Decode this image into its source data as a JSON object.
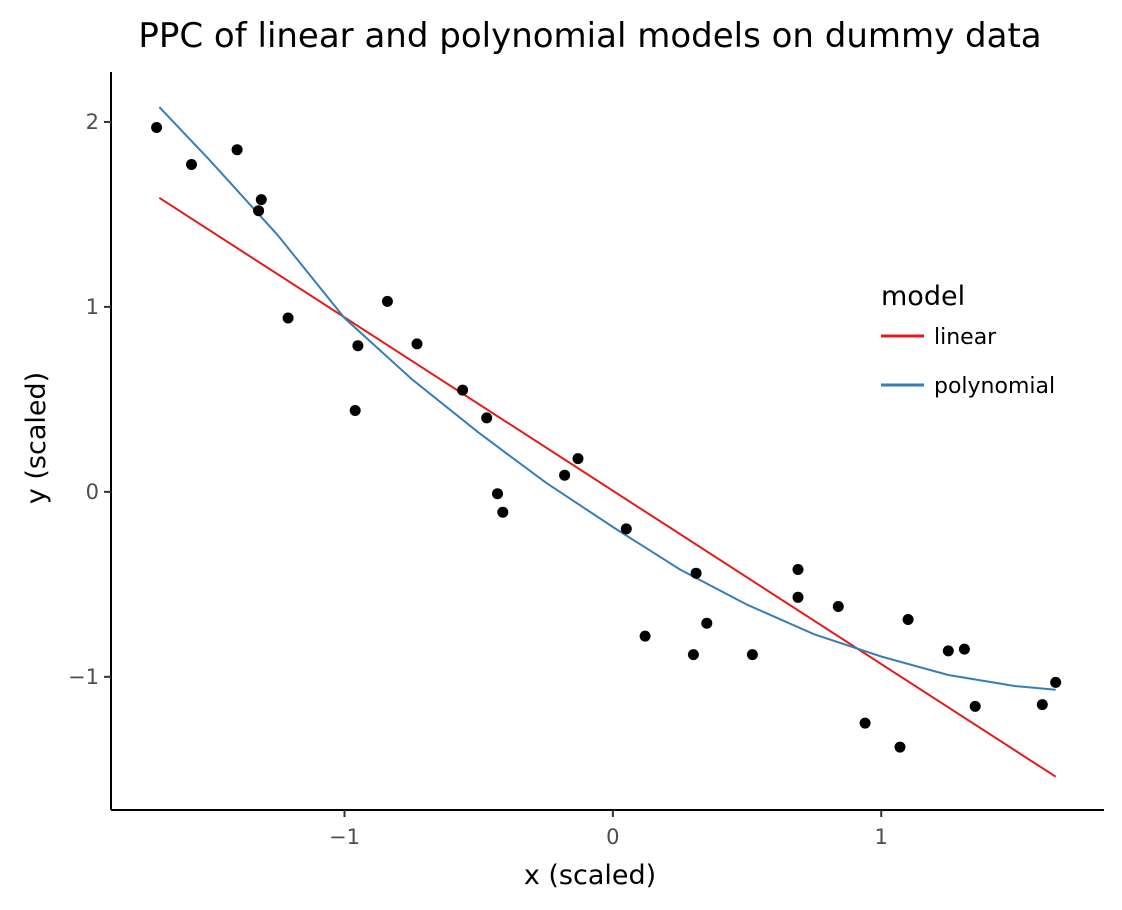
{
  "chart_data": {
    "type": "scatter",
    "title": "PPC of linear and polynomial models on dummy data",
    "xlabel": "x (scaled)",
    "ylabel": "y (scaled)",
    "xlim": [
      -1.87,
      1.83
    ],
    "ylim": [
      -1.72,
      2.27
    ],
    "x_ticks": [
      -1,
      0,
      1
    ],
    "x_tick_labels": [
      "−1",
      "0",
      "1"
    ],
    "y_ticks": [
      -1,
      0,
      1,
      2
    ],
    "y_tick_labels": [
      "−1",
      "0",
      "1",
      "2"
    ],
    "grid": false,
    "legend": {
      "title": "model",
      "position": "right-inside",
      "entries": [
        {
          "label": "linear",
          "color": "#e41a1c"
        },
        {
          "label": "polynomial",
          "color": "#377eb8"
        }
      ]
    },
    "points": {
      "color": "#000000",
      "x": [
        -1.7,
        -1.57,
        -1.4,
        -1.32,
        -1.31,
        -1.21,
        -0.96,
        -0.95,
        -0.84,
        -0.73,
        -0.56,
        -0.47,
        -0.43,
        -0.41,
        -0.18,
        -0.13,
        0.05,
        0.12,
        0.3,
        0.31,
        0.35,
        0.52,
        0.69,
        0.69,
        0.84,
        0.94,
        1.07,
        1.1,
        1.25,
        1.31,
        1.35,
        1.6,
        1.65
      ],
      "y": [
        1.97,
        1.77,
        1.85,
        1.52,
        1.58,
        0.94,
        0.44,
        0.79,
        1.03,
        0.8,
        0.55,
        0.4,
        -0.01,
        -0.11,
        0.09,
        0.18,
        -0.2,
        -0.78,
        -0.88,
        -0.44,
        -0.71,
        -0.88,
        -0.42,
        -0.57,
        -0.62,
        -1.25,
        -1.38,
        -0.69,
        -0.86,
        -0.85,
        -1.16,
        -1.15,
        -1.03
      ]
    },
    "series": [
      {
        "name": "linear",
        "color": "#e41a1c",
        "x": [
          -1.69,
          1.65
        ],
        "y": [
          1.59,
          -1.54
        ]
      },
      {
        "name": "polynomial",
        "color": "#377eb8",
        "x": [
          -1.69,
          -1.5,
          -1.25,
          -1.0,
          -0.75,
          -0.5,
          -0.25,
          0.0,
          0.25,
          0.5,
          0.75,
          1.0,
          1.25,
          1.5,
          1.65
        ],
        "y": [
          2.08,
          1.79,
          1.39,
          0.94,
          0.61,
          0.32,
          0.05,
          -0.19,
          -0.42,
          -0.61,
          -0.77,
          -0.89,
          -0.99,
          -1.05,
          -1.07
        ]
      }
    ]
  }
}
